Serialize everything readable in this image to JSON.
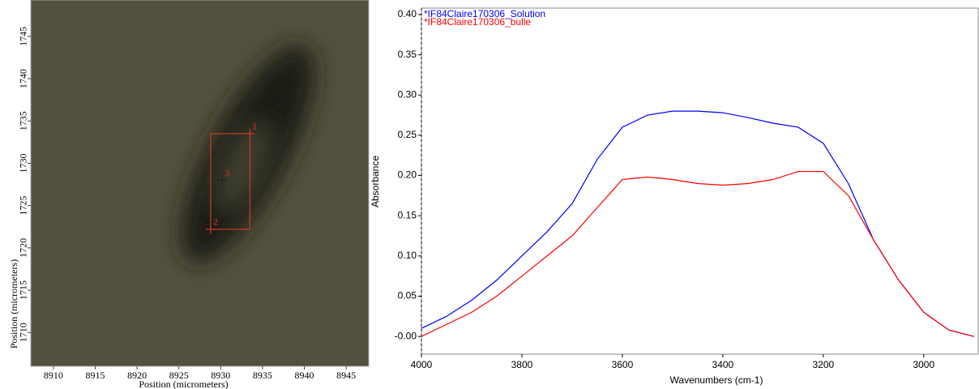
{
  "chart_data": [
    {
      "type": "image",
      "xlabel": "Position (micrometers)",
      "ylabel": "Position (micrometers)",
      "xlim": [
        8907.3,
        8947.7
      ],
      "ylim": [
        1706.0,
        1749.3
      ],
      "xticks": [
        8910,
        8915,
        8920,
        8925,
        8930,
        8935,
        8940,
        8945
      ],
      "yticks": [
        1710,
        1715,
        1720,
        1725,
        1730,
        1735,
        1740,
        1745
      ],
      "color": "#d03a2a",
      "markers": [
        {
          "label": "1",
          "x": 8933.5,
          "y": 1733.5
        },
        {
          "label": "2",
          "x": 8928.8,
          "y": 1722.2
        },
        {
          "label": "3",
          "x": 8930.2,
          "y": 1728.0
        }
      ]
    },
    {
      "type": "line",
      "xlabel": "Wavenumbers (cm-1)",
      "ylabel": "Absorbance",
      "xlim": [
        4000,
        2890
      ],
      "ylim": [
        -0.022,
        0.408
      ],
      "xticks": [
        4000,
        3800,
        3600,
        3400,
        3200,
        3000
      ],
      "yticks": [
        {
          "value": 0,
          "label": "-0.00"
        },
        0.05,
        {
          "value": 0.1,
          "label": "0.10"
        },
        0.15,
        {
          "value": 0.2,
          "label": "0.20"
        },
        0.25,
        {
          "value": 0.3,
          "label": "0.30"
        },
        0.35,
        {
          "value": 0.4,
          "label": "0.40"
        }
      ],
      "x": [
        4000,
        3950,
        3900,
        3850,
        3800,
        3750,
        3700,
        3650,
        3600,
        3550,
        3500,
        3450,
        3400,
        3350,
        3300,
        3250,
        3200,
        3150,
        3100,
        3050,
        3000,
        2950,
        2900
      ],
      "series": [
        {
          "name": "*IF84Claire170306_Solution",
          "color": "#0000ff",
          "values": [
            0.01,
            0.025,
            0.045,
            0.07,
            0.1,
            0.13,
            0.165,
            0.22,
            0.26,
            0.275,
            0.28,
            0.28,
            0.278,
            0.272,
            0.265,
            0.26,
            0.24,
            0.19,
            0.12,
            0.07,
            0.03,
            0.008,
            0.0
          ]
        },
        {
          "name": "*IF84Claire170306_bulle",
          "color": "#ff0000",
          "values": [
            0.0,
            0.015,
            0.03,
            0.05,
            0.075,
            0.1,
            0.125,
            0.16,
            0.195,
            0.198,
            0.195,
            0.19,
            0.188,
            0.19,
            0.195,
            0.205,
            0.205,
            0.175,
            0.12,
            0.07,
            0.03,
            0.008,
            0.0
          ]
        }
      ]
    }
  ]
}
